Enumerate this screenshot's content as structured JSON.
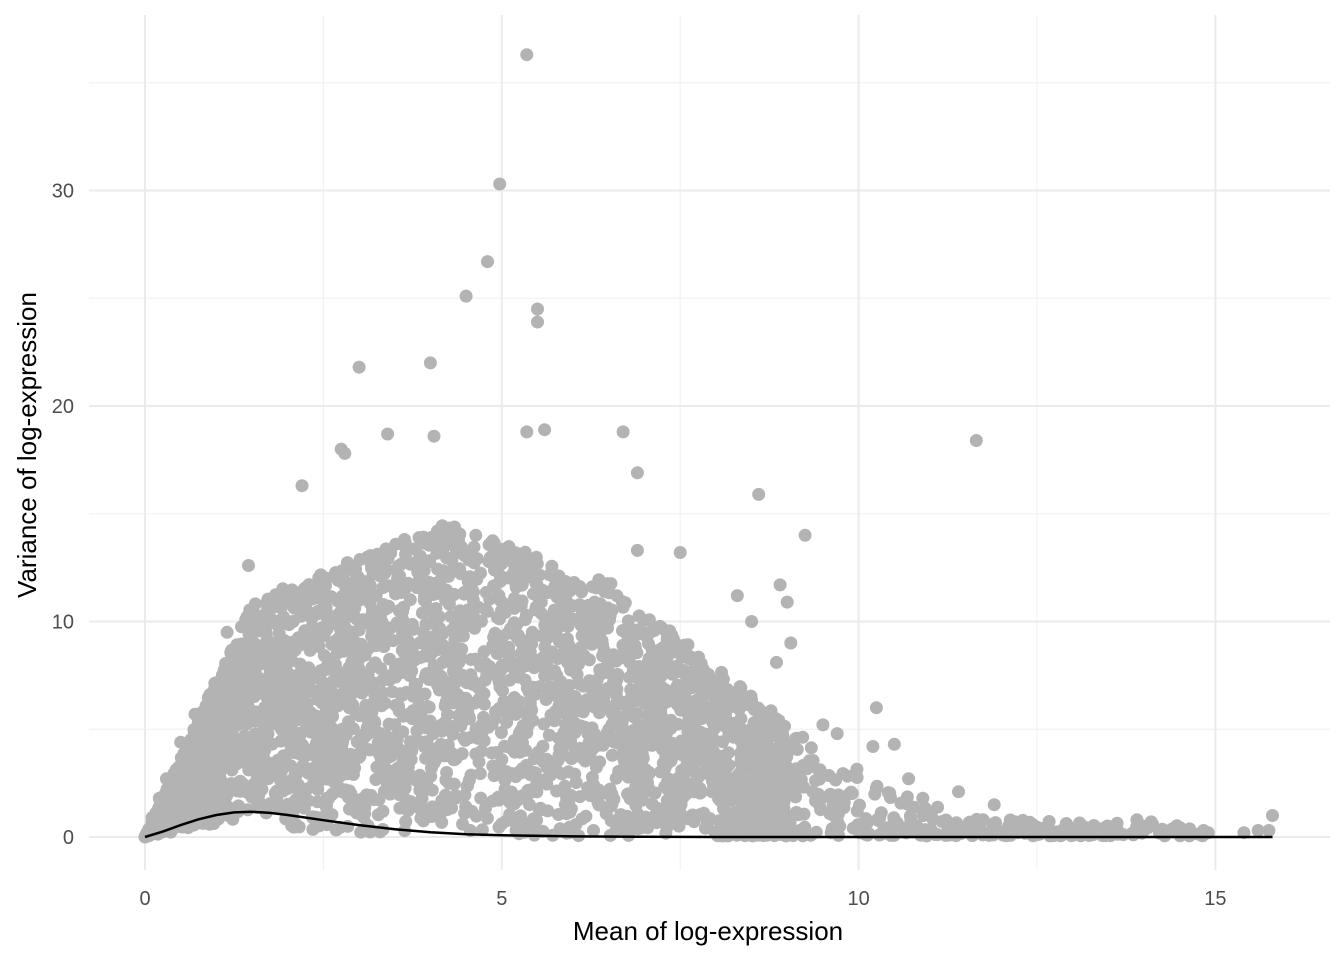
{
  "chart_data": {
    "type": "scatter",
    "title": "",
    "xlabel": "Mean of log-expression",
    "ylabel": "Variance of log-expression",
    "xlim": [
      -0.8,
      16.5
    ],
    "ylim": [
      -1.5,
      37.5
    ],
    "x_ticks": [
      0,
      5,
      10,
      15
    ],
    "y_ticks": [
      0,
      10,
      20,
      30
    ],
    "x_tick_labels": [
      "0",
      "5",
      "10",
      "15"
    ],
    "y_tick_labels": [
      "0",
      "10",
      "20",
      "30"
    ],
    "grid": true,
    "legend": "none",
    "point_color": "#b3b3b3",
    "line_color": "#000000",
    "background": "#ffffff",
    "series": [
      {
        "type": "points",
        "note_density": "dense cloud of several thousand genes; listed points are representative outliers plus cloud outline",
        "points": [
          [
            5.35,
            36.3
          ],
          [
            4.97,
            30.3
          ],
          [
            4.8,
            26.7
          ],
          [
            4.5,
            25.1
          ],
          [
            5.5,
            24.5
          ],
          [
            5.5,
            23.9
          ],
          [
            3.0,
            21.8
          ],
          [
            4.0,
            22.0
          ],
          [
            11.65,
            18.4
          ],
          [
            5.6,
            18.9
          ],
          [
            6.7,
            18.8
          ],
          [
            3.4,
            18.7
          ],
          [
            5.35,
            18.8
          ],
          [
            4.05,
            18.6
          ],
          [
            2.8,
            17.8
          ],
          [
            2.75,
            18.0
          ],
          [
            6.9,
            16.9
          ],
          [
            8.6,
            15.9
          ],
          [
            9.25,
            14.0
          ],
          [
            2.2,
            16.3
          ],
          [
            7.5,
            13.2
          ],
          [
            6.9,
            13.3
          ],
          [
            9.0,
            10.9
          ],
          [
            8.5,
            10.0
          ],
          [
            8.3,
            11.2
          ],
          [
            8.9,
            11.7
          ],
          [
            9.05,
            9.0
          ],
          [
            8.85,
            8.1
          ],
          [
            10.25,
            6.0
          ],
          [
            10.5,
            4.3
          ],
          [
            10.2,
            4.2
          ],
          [
            9.5,
            5.2
          ],
          [
            9.7,
            4.8
          ],
          [
            11.4,
            2.1
          ],
          [
            13.9,
            0.8
          ],
          [
            14.1,
            0.7
          ],
          [
            15.8,
            1.0
          ],
          [
            15.75,
            0.3
          ],
          [
            12.6,
            0.4
          ],
          [
            11.9,
            1.5
          ],
          [
            13.2,
            0.2
          ],
          [
            14.9,
            0.2
          ],
          [
            15.4,
            0.2
          ],
          [
            15.6,
            0.3
          ],
          [
            1.45,
            12.6
          ],
          [
            1.15,
            9.5
          ],
          [
            0.7,
            5.7
          ],
          [
            0.5,
            4.4
          ],
          [
            0.3,
            2.7
          ],
          [
            0.2,
            1.8
          ],
          [
            0.1,
            0.9
          ],
          [
            0.05,
            0.3
          ],
          [
            0.0,
            0.0
          ],
          [
            2.35,
            0.9
          ],
          [
            1.55,
            1.8
          ],
          [
            4.45,
            0.6
          ],
          [
            5.2,
            0.3
          ],
          [
            10.7,
            2.7
          ],
          [
            10.9,
            1.8
          ],
          [
            12.1,
            0.5
          ],
          [
            3.9,
            9.5
          ],
          [
            4.6,
            11.0
          ],
          [
            5.8,
            9.2
          ],
          [
            6.5,
            8.0
          ],
          [
            7.2,
            6.8
          ],
          [
            7.8,
            5.5
          ],
          [
            8.4,
            3.9
          ],
          [
            9.1,
            2.5
          ],
          [
            9.8,
            1.6
          ],
          [
            3.0,
            7.0
          ],
          [
            2.0,
            6.0
          ],
          [
            1.2,
            4.2
          ]
        ]
      },
      {
        "type": "line",
        "name": "",
        "points": [
          [
            0,
            0
          ],
          [
            0.25,
            0.25
          ],
          [
            0.5,
            0.55
          ],
          [
            0.75,
            0.82
          ],
          [
            1.0,
            1.02
          ],
          [
            1.25,
            1.14
          ],
          [
            1.5,
            1.17
          ],
          [
            1.75,
            1.12
          ],
          [
            2.0,
            1.02
          ],
          [
            2.5,
            0.78
          ],
          [
            3.0,
            0.55
          ],
          [
            3.5,
            0.36
          ],
          [
            4.0,
            0.22
          ],
          [
            4.5,
            0.13
          ],
          [
            5.0,
            0.08
          ],
          [
            6.0,
            0.03
          ],
          [
            7.0,
            0.01
          ],
          [
            8.0,
            0.0
          ],
          [
            10.0,
            0.0
          ],
          [
            12.0,
            0.0
          ],
          [
            14.0,
            0.0
          ],
          [
            15.8,
            0.0
          ]
        ]
      }
    ]
  }
}
